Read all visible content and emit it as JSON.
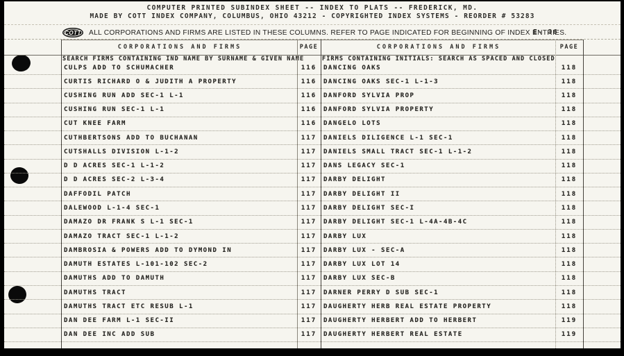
{
  "header": {
    "line1": "COMPUTER PRINTED SUBINDEX SHEET -- INDEX TO PLATS -- FREDERICK, MD.",
    "line2": "MADE BY COTT INDEX COMPANY, COLUMBUS, OHIO 43212 - COPYRIGHTED INDEX SYSTEMS - REORDER # 53283",
    "logo_text": "COTT",
    "notice": "ALL CORPORATIONS AND FIRMS ARE LISTED IN THESE COLUMNS. REFER TO PAGE INDICATED FOR BEGINNING OF INDEX ENTRIES.",
    "sheet_ref": "E- 36"
  },
  "table": {
    "col_headers": [
      "CORPORATIONS AND FIRMS",
      "PAGE",
      "CORPORATIONS AND FIRMS",
      "PAGE"
    ],
    "left_note": "SEARCH FIRMS CONTAINING IND NAME BY SURNAME & GIVEN NAME",
    "right_note": "FIRMS CONTAINING INITIALS:  SEARCH AS SPACED AND CLOSED",
    "left_rows": [
      {
        "name": "CULPS ADD TO SCHUMACHER",
        "page": "116"
      },
      {
        "name": "CURTIS RICHARD O & JUDITH A PROPERTY",
        "page": "116"
      },
      {
        "name": "CUSHING RUN ADD SEC-1 L-1",
        "page": "116"
      },
      {
        "name": "CUSHING RUN SEC-1 L-1",
        "page": "116"
      },
      {
        "name": "CUT KNEE FARM",
        "page": "116"
      },
      {
        "name": "CUTHBERTSONS ADD TO BUCHANAN",
        "page": "117"
      },
      {
        "name": "CUTSHALLS DIVISION L-1-2",
        "page": "117"
      },
      {
        "name": "D D ACRES SEC-1 L-1-2",
        "page": "117"
      },
      {
        "name": "D D ACRES SEC-2 L-3-4",
        "page": "117"
      },
      {
        "name": "DAFFODIL PATCH",
        "page": "117"
      },
      {
        "name": "DALEWOOD L-1-4 SEC-1",
        "page": "117"
      },
      {
        "name": "DAMAZO DR FRANK S L-1 SEC-1",
        "page": "117"
      },
      {
        "name": "DAMAZO TRACT SEC-1 L-1-2",
        "page": "117"
      },
      {
        "name": "DAMBROSIA & POWERS ADD TO DYMOND IN",
        "page": "117"
      },
      {
        "name": "DAMUTH ESTATES L-101-102 SEC-2",
        "page": "117"
      },
      {
        "name": "DAMUTHS ADD TO DAMUTH",
        "page": "117"
      },
      {
        "name": "DAMUTHS TRACT",
        "page": "117"
      },
      {
        "name": "DAMUTHS TRACT ETC RESUB L-1",
        "page": "117"
      },
      {
        "name": "DAN DEE FARM L-1 SEC-II",
        "page": "117"
      },
      {
        "name": "DAN DEE INC ADD SUB",
        "page": "117"
      }
    ],
    "right_rows": [
      {
        "name": "DANCING OAKS",
        "page": "118"
      },
      {
        "name": "DANCING OAKS SEC-1 L-1-3",
        "page": "118"
      },
      {
        "name": "DANFORD SYLVIA PROP",
        "page": "118"
      },
      {
        "name": "DANFORD SYLVIA PROPERTY",
        "page": "118"
      },
      {
        "name": "DANGELO LOTS",
        "page": "118"
      },
      {
        "name": "DANIELS DILIGENCE L-1 SEC-1",
        "page": "118"
      },
      {
        "name": "DANIELS SMALL TRACT SEC-1 L-1-2",
        "page": "118"
      },
      {
        "name": "DANS LEGACY SEC-1",
        "page": "118"
      },
      {
        "name": "DARBY DELIGHT",
        "page": "118"
      },
      {
        "name": "DARBY DELIGHT II",
        "page": "118"
      },
      {
        "name": "DARBY DELIGHT SEC-I",
        "page": "118"
      },
      {
        "name": "DARBY DELIGHT SEC-1 L-4A-4B-4C",
        "page": "118"
      },
      {
        "name": "DARBY LUX",
        "page": "118"
      },
      {
        "name": "DARBY LUX - SEC-A",
        "page": "118"
      },
      {
        "name": "DARBY LUX LOT 14",
        "page": "118"
      },
      {
        "name": "DARBY LUX SEC-B",
        "page": "118"
      },
      {
        "name": "DARNER PERRY D SUB SEC-1",
        "page": "118"
      },
      {
        "name": "DAUGHERTY HERB REAL ESTATE PROPERTY",
        "page": "118"
      },
      {
        "name": "DAUGHERTY HERBERT ADD TO HERBERT",
        "page": "119"
      },
      {
        "name": "DAUGHERTY HERBERT REAL ESTATE",
        "page": "119"
      }
    ]
  }
}
